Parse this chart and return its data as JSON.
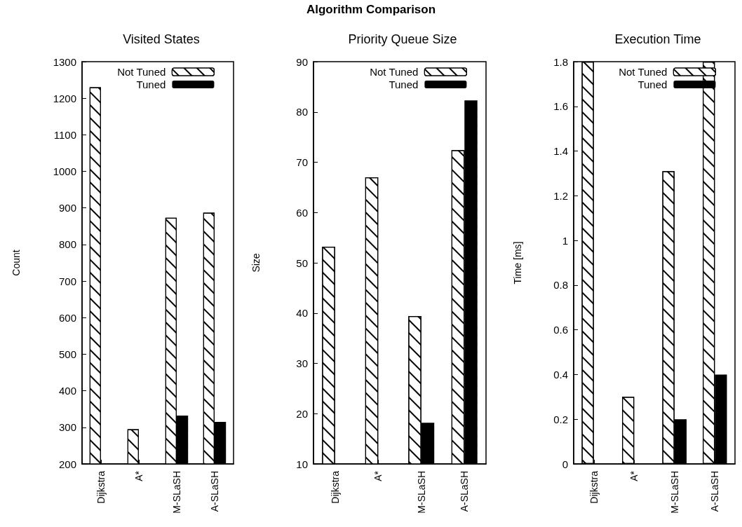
{
  "chart_data": [
    {
      "type": "bar",
      "title": "Visited States",
      "ylabel": "Count",
      "annotations": [
        "Algorithm Comparison"
      ],
      "categories": [
        "Dijkstra",
        "A*",
        "M-SLaSH",
        "A-SLaSH"
      ],
      "series": [
        {
          "name": "Not Tuned",
          "color": "#ffffff",
          "values": [
            1230,
            295,
            873,
            887
          ]
        },
        {
          "name": "Tuned",
          "color": "#000000",
          "values": [
            null,
            null,
            332,
            315
          ]
        }
      ],
      "ylim": [
        200,
        1300
      ],
      "yticks": [
        200,
        300,
        400,
        500,
        600,
        700,
        800,
        900,
        1000,
        1100,
        1200,
        1300
      ],
      "grid": false,
      "legend": "top right"
    },
    {
      "type": "bar",
      "title": "Priority Queue Size",
      "ylabel": "Size",
      "categories": [
        "Dijkstra",
        "A*",
        "M-SLaSH",
        "A-SLaSH"
      ],
      "series": [
        {
          "name": "Not Tuned",
          "color": "#ffffff",
          "values": [
            53.2,
            67,
            39.4,
            72.4
          ]
        },
        {
          "name": "Tuned",
          "color": "#000000",
          "values": [
            null,
            null,
            18.2,
            82.3
          ]
        }
      ],
      "ylim": [
        10,
        90
      ],
      "yticks": [
        10,
        20,
        30,
        40,
        50,
        60,
        70,
        80,
        90
      ],
      "grid": false,
      "legend": "top right"
    },
    {
      "type": "bar",
      "title": "Execution Time",
      "ylabel": "Time [ms]",
      "categories": [
        "Dijkstra",
        "A*",
        "M-SLaSH",
        "A-SLaSH"
      ],
      "series": [
        {
          "name": "Not Tuned",
          "color": "#ffffff",
          "values": [
            1.8,
            0.3,
            1.31,
            1.8
          ]
        },
        {
          "name": "Tuned",
          "color": "#000000",
          "values": [
            null,
            null,
            0.2,
            0.4
          ]
        }
      ],
      "ylim": [
        0,
        1.8
      ],
      "yticks": [
        0,
        0.2,
        0.4,
        0.6,
        0.8,
        1,
        1.2,
        1.4,
        1.6,
        1.8
      ],
      "grid": false,
      "legend": "top right"
    }
  ]
}
